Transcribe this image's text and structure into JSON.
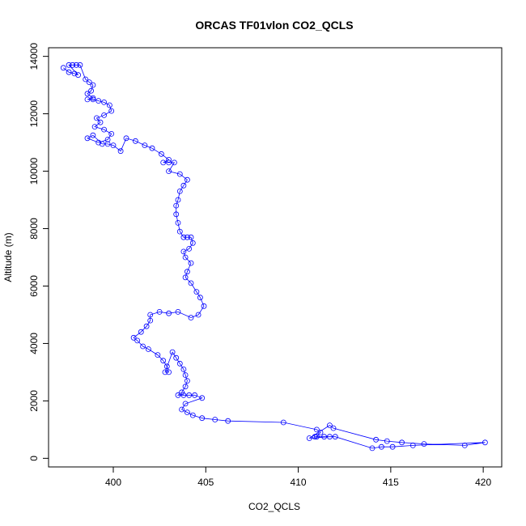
{
  "chart_data": {
    "type": "scatter",
    "title": "ORCAS TF01vlon CO2_QCLS",
    "xlabel": "CO2_QCLS",
    "ylabel": "Altitude (m)",
    "xlim": [
      396.5,
      421
    ],
    "ylim": [
      -300,
      14300
    ],
    "xticks": [
      400,
      405,
      410,
      415,
      420
    ],
    "yticks": [
      0,
      2000,
      4000,
      6000,
      8000,
      10000,
      12000,
      14000
    ],
    "grid": false,
    "series": [
      {
        "color": "#0000ff",
        "marker": "open-circle",
        "connected": true,
        "points": [
          [
            397.3,
            13600
          ],
          [
            397.6,
            13450
          ],
          [
            397.9,
            13400
          ],
          [
            398.1,
            13350
          ],
          [
            397.6,
            13700
          ],
          [
            397.8,
            13700
          ],
          [
            398.0,
            13700
          ],
          [
            398.2,
            13700
          ],
          [
            398.5,
            13200
          ],
          [
            398.7,
            13100
          ],
          [
            398.9,
            13000
          ],
          [
            398.8,
            12800
          ],
          [
            398.6,
            12700
          ],
          [
            398.9,
            12550
          ],
          [
            398.6,
            12500
          ],
          [
            398.9,
            12500
          ],
          [
            399.2,
            12450
          ],
          [
            399.5,
            12400
          ],
          [
            399.8,
            12300
          ],
          [
            399.9,
            12100
          ],
          [
            399.5,
            11950
          ],
          [
            399.1,
            11850
          ],
          [
            399.3,
            11700
          ],
          [
            399.0,
            11550
          ],
          [
            399.5,
            11450
          ],
          [
            399.9,
            11300
          ],
          [
            399.7,
            11100
          ],
          [
            399.2,
            11000
          ],
          [
            398.6,
            11150
          ],
          [
            398.9,
            11250
          ],
          [
            399.4,
            10950
          ],
          [
            399.7,
            10950
          ],
          [
            400.0,
            10900
          ],
          [
            400.4,
            10700
          ],
          [
            400.7,
            11150
          ],
          [
            401.2,
            11050
          ],
          [
            401.7,
            10900
          ],
          [
            402.1,
            10800
          ],
          [
            402.6,
            10600
          ],
          [
            403.0,
            10400
          ],
          [
            402.7,
            10300
          ],
          [
            403.0,
            10300
          ],
          [
            403.3,
            10300
          ],
          [
            403.0,
            10000
          ],
          [
            403.6,
            9900
          ],
          [
            404.0,
            9700
          ],
          [
            403.8,
            9500
          ],
          [
            403.6,
            9300
          ],
          [
            403.5,
            9000
          ],
          [
            403.4,
            8800
          ],
          [
            403.4,
            8500
          ],
          [
            403.5,
            8200
          ],
          [
            403.6,
            7900
          ],
          [
            403.8,
            7700
          ],
          [
            404.0,
            7700
          ],
          [
            404.2,
            7700
          ],
          [
            404.3,
            7500
          ],
          [
            404.1,
            7300
          ],
          [
            403.8,
            7200
          ],
          [
            403.9,
            7000
          ],
          [
            404.2,
            6800
          ],
          [
            404.0,
            6500
          ],
          [
            403.9,
            6300
          ],
          [
            404.2,
            6100
          ],
          [
            404.5,
            5800
          ],
          [
            404.7,
            5600
          ],
          [
            404.9,
            5300
          ],
          [
            404.6,
            5000
          ],
          [
            404.2,
            4900
          ],
          [
            403.5,
            5100
          ],
          [
            403.0,
            5050
          ],
          [
            402.5,
            5100
          ],
          [
            402.0,
            5000
          ],
          [
            402.0,
            4800
          ],
          [
            401.8,
            4600
          ],
          [
            401.5,
            4400
          ],
          [
            401.1,
            4200
          ],
          [
            401.3,
            4100
          ],
          [
            401.6,
            3900
          ],
          [
            401.9,
            3800
          ],
          [
            402.4,
            3600
          ],
          [
            402.7,
            3400
          ],
          [
            402.9,
            3200
          ],
          [
            403.0,
            3000
          ],
          [
            402.8,
            3000
          ],
          [
            403.2,
            3700
          ],
          [
            403.4,
            3500
          ],
          [
            403.6,
            3300
          ],
          [
            403.8,
            3100
          ],
          [
            403.9,
            2900
          ],
          [
            404.0,
            2700
          ],
          [
            403.9,
            2500
          ],
          [
            403.7,
            2300
          ],
          [
            403.5,
            2200
          ],
          [
            403.8,
            2200
          ],
          [
            404.1,
            2200
          ],
          [
            404.4,
            2200
          ],
          [
            404.8,
            2100
          ],
          [
            403.9,
            1900
          ],
          [
            403.7,
            1700
          ],
          [
            404.0,
            1600
          ],
          [
            404.3,
            1500
          ],
          [
            404.8,
            1400
          ],
          [
            405.5,
            1350
          ],
          [
            406.2,
            1300
          ],
          [
            409.2,
            1250
          ],
          [
            411.0,
            1000
          ],
          [
            411.2,
            900
          ],
          [
            411.0,
            750
          ],
          [
            411.4,
            750
          ],
          [
            411.7,
            750
          ],
          [
            410.6,
            700
          ],
          [
            411.7,
            1150
          ],
          [
            411.9,
            1050
          ],
          [
            414.2,
            650
          ],
          [
            414.8,
            600
          ],
          [
            415.6,
            550
          ],
          [
            416.8,
            500
          ],
          [
            419.0,
            450
          ],
          [
            420.1,
            550
          ],
          [
            416.2,
            450
          ],
          [
            415.1,
            400
          ],
          [
            414.5,
            400
          ],
          [
            414.0,
            350
          ],
          [
            412.0,
            750
          ],
          [
            410.9,
            750
          ]
        ]
      }
    ]
  }
}
